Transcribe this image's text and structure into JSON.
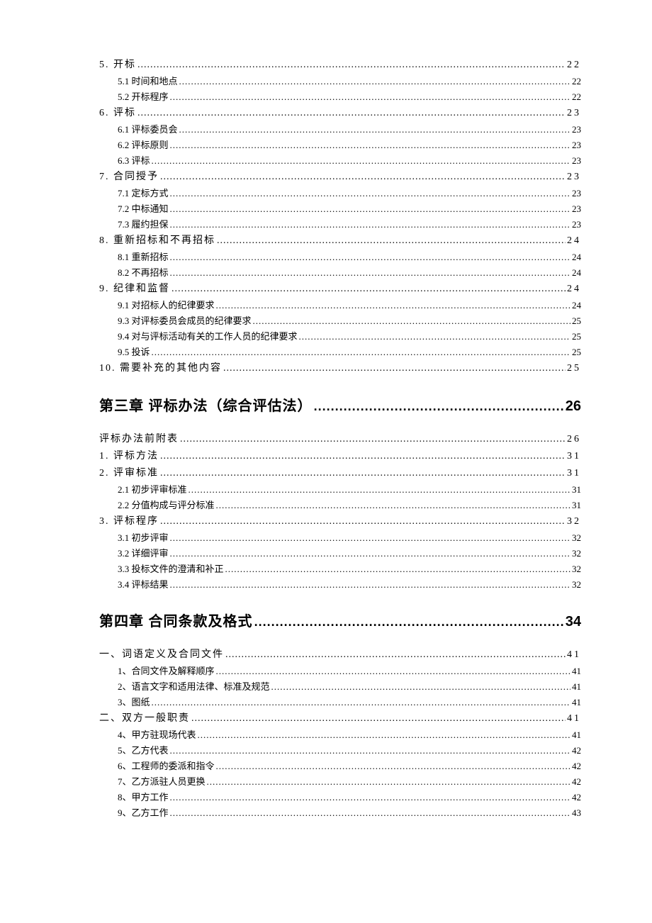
{
  "entries": [
    {
      "cls": "level-1",
      "label": "5.  开标",
      "page": "22"
    },
    {
      "cls": "level-2",
      "label": "5.1  时间和地点",
      "page": "22"
    },
    {
      "cls": "level-2",
      "label": "5.2  开标程序",
      "page": "22"
    },
    {
      "cls": "level-1",
      "label": "6.  评标",
      "page": "23"
    },
    {
      "cls": "level-2",
      "label": "6.1  评标委员会",
      "page": "23"
    },
    {
      "cls": "level-2",
      "label": "6.2  评标原则",
      "page": "23"
    },
    {
      "cls": "level-2",
      "label": "6.3  评标",
      "page": "23"
    },
    {
      "cls": "level-1",
      "label": "7.  合同授予",
      "page": "23"
    },
    {
      "cls": "level-2",
      "label": "7.1  定标方式",
      "page": "23"
    },
    {
      "cls": "level-2",
      "label": "7.2  中标通知",
      "page": "23"
    },
    {
      "cls": "level-2",
      "label": "7.3  履约担保",
      "page": "23"
    },
    {
      "cls": "level-1",
      "label": "8.  重新招标和不再招标",
      "page": "24"
    },
    {
      "cls": "level-2",
      "label": "8.1  重新招标",
      "page": "24"
    },
    {
      "cls": "level-2",
      "label": "8.2  不再招标",
      "page": "24"
    },
    {
      "cls": "level-1",
      "label": "9.  纪律和监督",
      "page": "24"
    },
    {
      "cls": "level-2",
      "label": "9.1  对招标人的纪律要求",
      "page": "24"
    },
    {
      "cls": "level-2",
      "label": "9.3  对评标委员会成员的纪律要求",
      "page": "25"
    },
    {
      "cls": "level-2",
      "label": "9.4  对与评标活动有关的工作人员的纪律要求",
      "page": "25"
    },
    {
      "cls": "level-2",
      "label": "9.5  投诉",
      "page": "25"
    },
    {
      "cls": "level-1",
      "label": "10.  需要补充的其他内容",
      "page": "25"
    },
    {
      "cls": "chapter",
      "label": "第三章   评标办法（综合评估法）",
      "page": "26"
    },
    {
      "cls": "level-1",
      "label": "评标办法前附表",
      "page": "26"
    },
    {
      "cls": "level-1",
      "label": "1.  评标方法",
      "page": "31"
    },
    {
      "cls": "level-1",
      "label": "2.  评审标准",
      "page": "31"
    },
    {
      "cls": "level-2",
      "label": "2.1  初步评审标准",
      "page": "31"
    },
    {
      "cls": "level-2",
      "label": "2.2  分值构成与评分标准",
      "page": "31"
    },
    {
      "cls": "level-1",
      "label": "3.  评标程序",
      "page": "32"
    },
    {
      "cls": "level-2",
      "label": "3.1  初步评审",
      "page": "32"
    },
    {
      "cls": "level-2",
      "label": "3.2  详细评审",
      "page": "32"
    },
    {
      "cls": "level-2",
      "label": "3.3  投标文件的澄清和补正",
      "page": "32"
    },
    {
      "cls": "level-2",
      "label": "3.4  评标结果",
      "page": "32"
    },
    {
      "cls": "chapter",
      "label": "第四章  合同条款及格式",
      "page": "34"
    },
    {
      "cls": "alt-l1",
      "label": "一、词语定义及合同文件",
      "page": "41"
    },
    {
      "cls": "alt-l2",
      "label": "1、合同文件及解释顺序",
      "page": "41"
    },
    {
      "cls": "alt-l2",
      "label": "2、语言文字和适用法律、标准及规范",
      "page": "41"
    },
    {
      "cls": "alt-l2",
      "label": "3、图纸",
      "page": "41"
    },
    {
      "cls": "alt-l1",
      "label": "二、双方一般职责",
      "page": "41"
    },
    {
      "cls": "alt-l2",
      "label": "4、甲方驻现场代表",
      "page": "41"
    },
    {
      "cls": "alt-l2",
      "label": "5、乙方代表",
      "page": "42"
    },
    {
      "cls": "alt-l2",
      "label": "6、工程师的委派和指令",
      "page": "42"
    },
    {
      "cls": "alt-l2",
      "label": "7、乙方派驻人员更换",
      "page": "42"
    },
    {
      "cls": "alt-l2",
      "label": "8、甲方工作",
      "page": "42"
    },
    {
      "cls": "alt-l2",
      "label": "9、乙方工作",
      "page": "43"
    }
  ]
}
